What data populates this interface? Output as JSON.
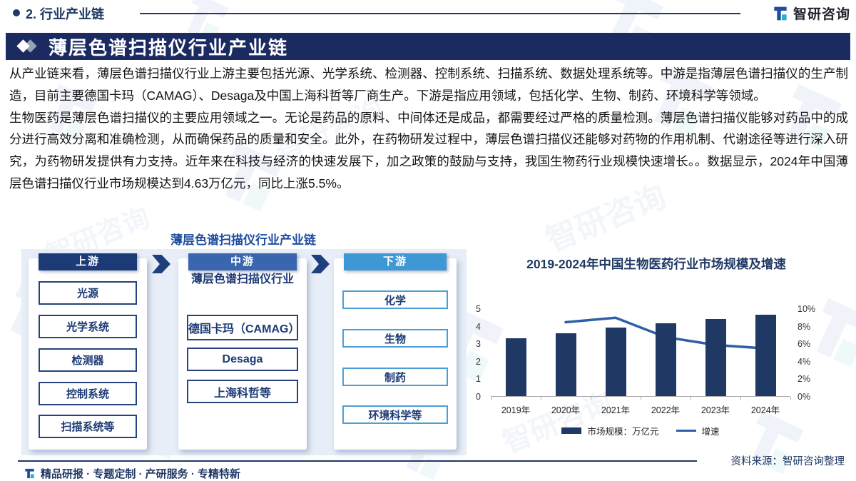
{
  "page": {
    "section_label": "2. 行业产业链",
    "banner_title": "薄层色谱扫描仪行业产业链",
    "logo_text": "智研咨询",
    "paragraph1": "从产业链来看，薄层色谱扫描仪行业上游主要包括光源、光学系统、检测器、控制系统、扫描系统、数据处理系统等。中游是指薄层色谱扫描仪的生产制造，目前主要德国卡玛（CAMAG）、Desaga及中国上海科哲等厂商生产。下游是指应用领域，包括化学、生物、制药、环境科学等领域。",
    "paragraph2": "生物医药是薄层色谱扫描仪的主要应用领域之一。无论是药品的原料、中间体还是成品，都需要经过严格的质量检测。薄层色谱扫描仪能够对药品中的成分进行高效分离和准确检测，从而确保药品的质量和安全。此外，在药物研发过程中，薄层色谱扫描仪还能够对药物的作用机制、代谢途径等进行深入研究，为药物研发提供有力支持。近年来在科技与经济的快速发展下，加之政策的鼓励与支持，我国生物药行业规模快速增长。。数据显示，2024年中国薄层色谱扫描仪行业市场规模达到4.63万亿元，同比上涨5.5%。",
    "source_note": "资料来源：智研咨询整理",
    "footer_tagline": "精品研报 · 专题定制 · 产研服务 · 专精特新",
    "watermark_text": "智研咨询"
  },
  "diagram": {
    "title": "薄层色谱扫描仪行业产业链",
    "columns": [
      {
        "header": "上游",
        "header_color": "#1c3a75",
        "items": [
          "光源",
          "光学系统",
          "检测器",
          "控制系统",
          "扫描系统等"
        ]
      },
      {
        "header": "中游",
        "header_color": "#3a66ae",
        "subtitle": "薄层色谱扫描仪行业",
        "items": [
          "德国卡玛（CAMAG）",
          "Desaga",
          "上海科哲等"
        ]
      },
      {
        "header": "下游",
        "header_color": "#3e98d4",
        "items": [
          "化学",
          "生物",
          "制药",
          "环境科学等"
        ]
      }
    ]
  },
  "chart_data": {
    "type": "bar",
    "title": "2019-2024年中国生物医药行业市场规模及增速",
    "categories": [
      "2019年",
      "2020年",
      "2021年",
      "2022年",
      "2023年",
      "2024年"
    ],
    "series": [
      {
        "name": "市场规模：万亿元",
        "type": "bar",
        "axis": "left",
        "color": "#1f3864",
        "values": [
          3.29,
          3.57,
          3.89,
          4.15,
          4.39,
          4.63
        ]
      },
      {
        "name": "增速",
        "type": "line",
        "axis": "right",
        "color": "#2e5fa8",
        "values": [
          null,
          8.5,
          9.0,
          6.8,
          5.9,
          5.5
        ]
      }
    ],
    "left_axis": {
      "min": 0,
      "max": 5,
      "step": 1,
      "ticks": [
        "0",
        "1",
        "2",
        "3",
        "4",
        "5"
      ]
    },
    "right_axis": {
      "min": 0,
      "max": 10,
      "step": 2,
      "suffix": "%",
      "ticks": [
        "0%",
        "2%",
        "4%",
        "6%",
        "8%",
        "10%"
      ]
    },
    "grid": false,
    "legend_position": "bottom"
  }
}
